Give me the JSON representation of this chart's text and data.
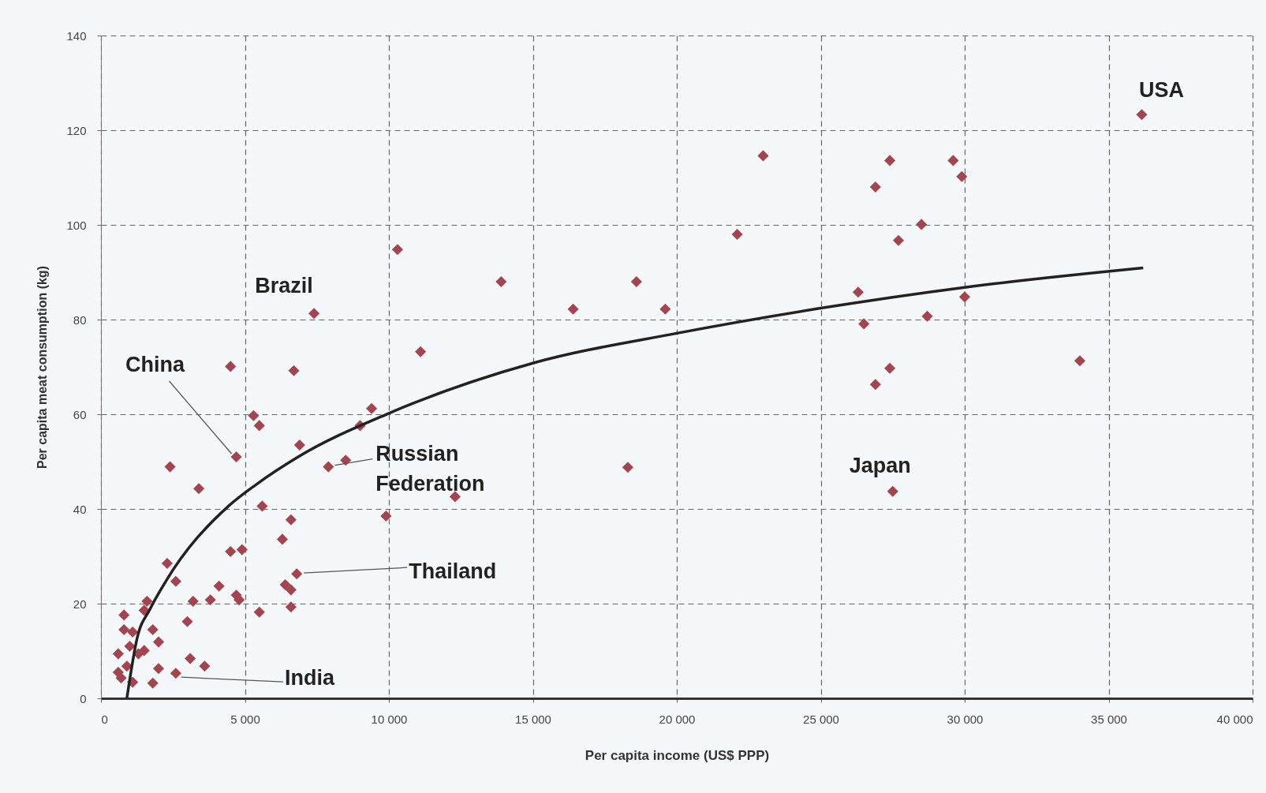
{
  "chart_data": {
    "type": "scatter",
    "xlabel": "Per capita income (US$ PPP)",
    "ylabel": "Per capita meat consumption (kg)",
    "xlim": [
      0,
      40000
    ],
    "ylim": [
      0,
      140
    ],
    "xticks": [
      0,
      {
        "value": 5000,
        "label": "5 000"
      },
      {
        "value": 10000,
        "label": "10 000"
      },
      {
        "value": 15000,
        "label": "15 000"
      },
      {
        "value": 20000,
        "label": "20 000"
      },
      {
        "value": 25000,
        "label": "25 000"
      },
      {
        "value": 30000,
        "label": "30 000"
      },
      {
        "value": 35000,
        "label": "35 000"
      },
      {
        "value": 40000,
        "label": "40 000"
      }
    ],
    "yticks": [
      0,
      20,
      40,
      60,
      80,
      100,
      120,
      140
    ],
    "grid": true,
    "marker": "diamond",
    "series": [
      {
        "color": "#a3454f",
        "x": [
          36150,
          23000,
          27400,
          29600,
          29900,
          26900,
          28500,
          27700,
          22100,
          10300,
          13900,
          18600,
          16400,
          19600,
          26300,
          26500,
          28700,
          30000,
          34000,
          27400,
          26900,
          27500,
          18300,
          12300,
          9900,
          11100,
          9400,
          9000,
          8500,
          7900,
          7400,
          6700,
          6900,
          5300,
          5500,
          4500,
          4700,
          2400,
          3400,
          5600,
          6600,
          6300,
          4500,
          4900,
          6800,
          6400,
          6600,
          6600,
          5500,
          2300,
          2600,
          4100,
          3200,
          3800,
          4700,
          4800,
          3000,
          1600,
          1500,
          800,
          800,
          1100,
          1800,
          2000,
          1500,
          600,
          2000,
          3100,
          3600,
          2600,
          1800,
          600,
          700,
          1100,
          900,
          1000,
          1300
        ],
        "values": [
          123.3,
          114.6,
          113.6,
          113.6,
          110.2,
          108,
          100.1,
          96.7,
          98,
          94.8,
          88,
          88,
          82.2,
          82.2,
          85.8,
          79.1,
          80.7,
          84.8,
          71.3,
          69.7,
          66.3,
          43.7,
          48.8,
          42.6,
          38.5,
          73.2,
          61.2,
          57.6,
          50.3,
          48.9,
          81.3,
          69.2,
          53.5,
          59.7,
          57.6,
          70.1,
          51,
          48.9,
          44.3,
          40.6,
          37.7,
          33.6,
          31,
          31.4,
          26.3,
          24,
          22.9,
          19.3,
          18.2,
          28.5,
          24.7,
          23.7,
          20.5,
          20.8,
          21.8,
          20.8,
          16.2,
          20.5,
          18.6,
          17.6,
          14.5,
          14,
          14.5,
          11.9,
          10.1,
          9.4,
          6.3,
          8.4,
          6.8,
          5.3,
          3.2,
          5.5,
          4.3,
          3.4,
          6.8,
          11,
          9.4
        ]
      },
      {
        "type": "line",
        "color": "#222222",
        "marker": "none",
        "x": [
          900,
          1260,
          1700,
          2250,
          4430,
          5400,
          6850,
          10000,
          15000,
          20000,
          25000,
          30000,
          36200
        ],
        "values": [
          0,
          12.8,
          18.8,
          24.7,
          40.6,
          45.2,
          51,
          60.2,
          70.8,
          77.1,
          82.4,
          86.8,
          90.9
        ]
      }
    ],
    "annotations": [
      {
        "text": "USA",
        "x": 36150,
        "y": 123.3
      },
      {
        "text": "Russian Federation",
        "x": 7900,
        "y": 48.9
      },
      {
        "text": "Brazil",
        "x": 7400,
        "y": 81.3
      },
      {
        "text": "China",
        "x": 4700,
        "y": 51
      },
      {
        "text": "Thailand",
        "x": 6800,
        "y": 26.3
      },
      {
        "text": "India",
        "x": 2600,
        "y": 5.3
      },
      {
        "text": "Japan",
        "x": 27500,
        "y": 43.7
      }
    ]
  }
}
